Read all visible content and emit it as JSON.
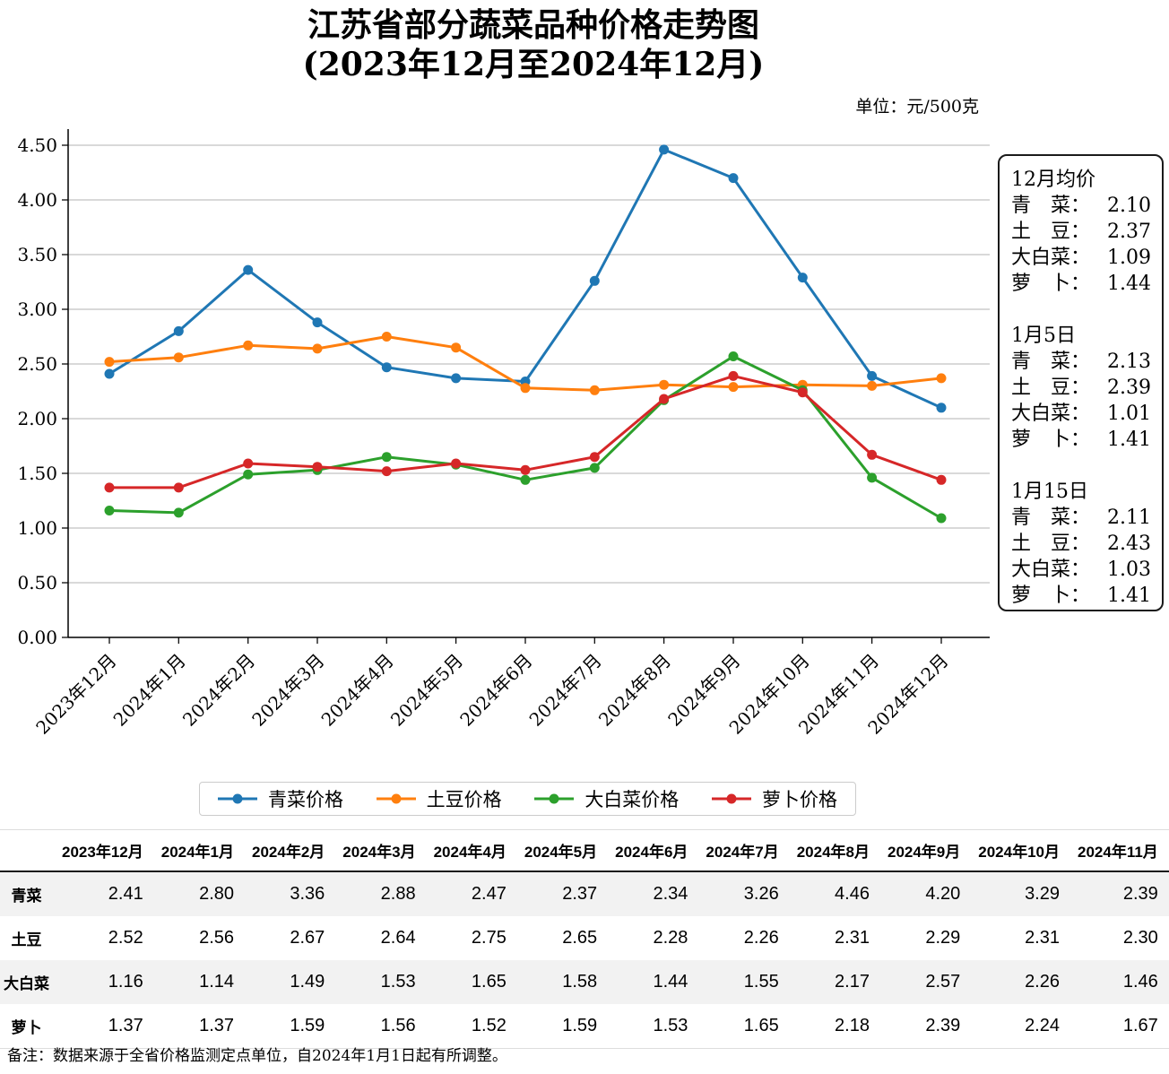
{
  "title": {
    "line1": "江苏省部分蔬菜品种价格走势图",
    "line2": "(2023年12月至2024年12月)"
  },
  "unit_label": "单位：元/500克",
  "chart_data": {
    "type": "line",
    "title": "江苏省部分蔬菜品种价格走势图(2023年12月至2024年12月)",
    "ylabel": "",
    "xlabel": "",
    "categories": [
      "2023年12月",
      "2024年1月",
      "2024年2月",
      "2024年3月",
      "2024年4月",
      "2024年5月",
      "2024年6月",
      "2024年7月",
      "2024年8月",
      "2024年9月",
      "2024年10月",
      "2024年11月",
      "2024年12月"
    ],
    "series": [
      {
        "name": "青菜价格",
        "color": "#1f77b4",
        "values": [
          2.41,
          2.8,
          3.36,
          2.88,
          2.47,
          2.37,
          2.34,
          3.26,
          4.46,
          4.2,
          3.29,
          2.39,
          2.1
        ]
      },
      {
        "name": "土豆价格",
        "color": "#ff7f0e",
        "values": [
          2.52,
          2.56,
          2.67,
          2.64,
          2.75,
          2.65,
          2.28,
          2.26,
          2.31,
          2.29,
          2.31,
          2.3,
          2.37
        ]
      },
      {
        "name": "大白菜价格",
        "color": "#2ca02c",
        "values": [
          1.16,
          1.14,
          1.49,
          1.53,
          1.65,
          1.58,
          1.44,
          1.55,
          2.17,
          2.57,
          2.26,
          1.46,
          1.09
        ]
      },
      {
        "name": "萝卜价格",
        "color": "#d62728",
        "values": [
          1.37,
          1.37,
          1.59,
          1.56,
          1.52,
          1.59,
          1.53,
          1.65,
          2.18,
          2.39,
          2.24,
          1.67,
          1.44
        ]
      }
    ],
    "ylim": [
      0,
      4.5
    ],
    "ytick_step": 0.5,
    "ytick_labels": [
      "0.00",
      "0.50",
      "1.00",
      "1.50",
      "2.00",
      "2.50",
      "3.00",
      "3.50",
      "4.00",
      "4.50"
    ],
    "xtick_rotation": 45,
    "grid": "horizontal",
    "legend_position": "bottom",
    "marker": "circle"
  },
  "annotation_box": {
    "sections": [
      {
        "heading": "12月均价",
        "rows": [
          {
            "label": "青　菜：",
            "value": "2.10"
          },
          {
            "label": "土　豆：",
            "value": "2.37"
          },
          {
            "label": "大白菜：",
            "value": "1.09"
          },
          {
            "label": "萝　卜：",
            "value": "1.44"
          }
        ]
      },
      {
        "heading": "1月5日",
        "rows": [
          {
            "label": "青　菜：",
            "value": "2.13"
          },
          {
            "label": "土　豆：",
            "value": "2.39"
          },
          {
            "label": "大白菜：",
            "value": "1.01"
          },
          {
            "label": "萝　卜：",
            "value": "1.41"
          }
        ]
      },
      {
        "heading": "1月15日",
        "rows": [
          {
            "label": "青　菜：",
            "value": "2.11"
          },
          {
            "label": "土　豆：",
            "value": "2.43"
          },
          {
            "label": "大白菜：",
            "value": "1.03"
          },
          {
            "label": "萝　卜：",
            "value": "1.41"
          }
        ]
      }
    ]
  },
  "table": {
    "corner_label": "",
    "row_labels": [
      "青菜",
      "土豆",
      "大白菜",
      "萝卜"
    ]
  },
  "footnote": "备注：数据来源于全省价格监测定点单位，自2024年1月1日起有所调整。"
}
